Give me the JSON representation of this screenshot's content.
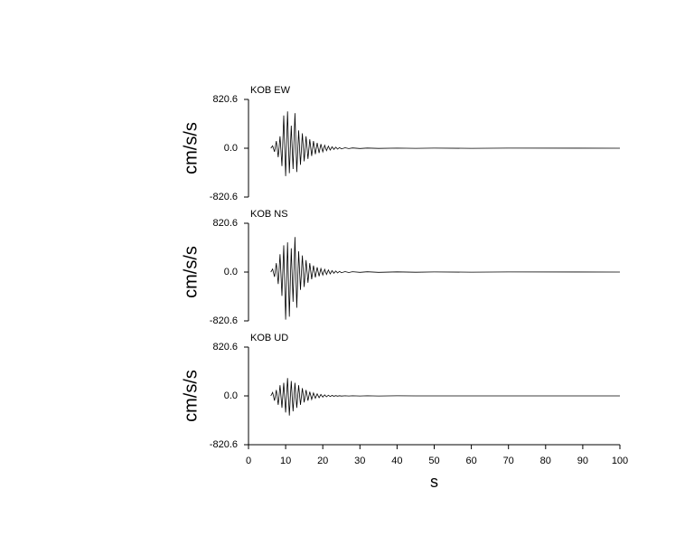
{
  "chart_data": [
    {
      "type": "line",
      "title": "KOB EW",
      "ylabel": "cm/s/s",
      "color": "#000000",
      "xlim": [
        0,
        100
      ],
      "ylim": [
        -820.6,
        820.6
      ],
      "yticks": [
        -820.6,
        {
          "value": 0,
          "label": "0.0"
        },
        820.6
      ],
      "x": [
        6,
        6.5,
        7,
        7.5,
        8,
        8.5,
        9,
        9.5,
        10,
        10.5,
        11,
        11.5,
        12,
        12.5,
        13,
        13.5,
        14,
        14.5,
        15,
        15.5,
        16,
        16.5,
        17,
        17.5,
        18,
        18.5,
        19,
        19.5,
        20,
        20.5,
        21,
        21.5,
        22,
        22.5,
        23,
        23.5,
        24,
        24.5,
        25,
        26,
        27,
        28,
        30,
        32,
        35,
        40,
        45,
        50,
        60,
        70,
        100
      ],
      "values": [
        0,
        40,
        -60,
        120,
        -150,
        200,
        -300,
        550,
        -470,
        620,
        -420,
        380,
        -350,
        590,
        -400,
        300,
        -280,
        250,
        -220,
        200,
        -180,
        150,
        -130,
        120,
        -100,
        90,
        -80,
        70,
        -60,
        50,
        -40,
        35,
        -30,
        25,
        -20,
        18,
        -15,
        12,
        -10,
        8,
        -6,
        5,
        -4,
        3,
        -3,
        2,
        -2,
        1,
        -1,
        1,
        0
      ]
    },
    {
      "type": "line",
      "title": "KOB NS",
      "ylabel": "cm/s/s",
      "color": "#000000",
      "xlim": [
        0,
        100
      ],
      "ylim": [
        -820.6,
        820.6
      ],
      "yticks": [
        -820.6,
        {
          "value": 0,
          "label": "0.0"
        },
        820.6
      ],
      "x": [
        6,
        6.5,
        7,
        7.5,
        8,
        8.5,
        9,
        9.5,
        10,
        10.5,
        11,
        11.5,
        12,
        12.5,
        13,
        13.5,
        14,
        14.5,
        15,
        15.5,
        16,
        16.5,
        17,
        17.5,
        18,
        18.5,
        19,
        19.5,
        20,
        20.5,
        21,
        21.5,
        22,
        22.5,
        23,
        23.5,
        24,
        24.5,
        25,
        26,
        27,
        28,
        30,
        32,
        35,
        40,
        45,
        50,
        60,
        70,
        100
      ],
      "values": [
        0,
        50,
        -80,
        150,
        -200,
        300,
        -400,
        450,
        -800,
        500,
        -750,
        400,
        -500,
        590,
        -600,
        350,
        -300,
        280,
        -250,
        200,
        -180,
        150,
        -120,
        110,
        -90,
        80,
        -70,
        60,
        -50,
        45,
        -40,
        35,
        -30,
        25,
        -20,
        18,
        -15,
        12,
        -10,
        8,
        -8,
        6,
        -5,
        4,
        -4,
        3,
        -3,
        2,
        -1,
        1,
        0
      ]
    },
    {
      "type": "line",
      "title": "KOB UD",
      "ylabel": "cm/s/s",
      "xlabel": "s",
      "color": "#000000",
      "xlim": [
        0,
        100
      ],
      "ylim": [
        -820.6,
        820.6
      ],
      "yticks": [
        -820.6,
        {
          "value": 0,
          "label": "0.0"
        },
        820.6
      ],
      "xticks": [
        0,
        10,
        20,
        30,
        40,
        50,
        60,
        70,
        80,
        90,
        100
      ],
      "x": [
        6,
        6.5,
        7,
        7.5,
        8,
        8.5,
        9,
        9.5,
        10,
        10.5,
        11,
        11.5,
        12,
        12.5,
        13,
        13.5,
        14,
        14.5,
        15,
        15.5,
        16,
        16.5,
        17,
        17.5,
        18,
        18.5,
        19,
        19.5,
        20,
        20.5,
        21,
        21.5,
        22,
        22.5,
        23,
        23.5,
        24,
        24.5,
        25,
        26,
        27,
        28,
        30,
        32,
        35,
        40,
        45,
        50,
        60,
        70,
        100
      ],
      "values": [
        0,
        60,
        -80,
        100,
        -150,
        180,
        -200,
        220,
        -280,
        300,
        -330,
        250,
        -260,
        220,
        -200,
        180,
        -150,
        130,
        -110,
        100,
        -80,
        70,
        -60,
        50,
        -40,
        35,
        -30,
        25,
        -20,
        18,
        -15,
        12,
        -10,
        8,
        -6,
        5,
        -4,
        3,
        -3,
        2,
        -2,
        2,
        -1,
        1,
        -1,
        1,
        0,
        0,
        0,
        0,
        0
      ]
    }
  ]
}
